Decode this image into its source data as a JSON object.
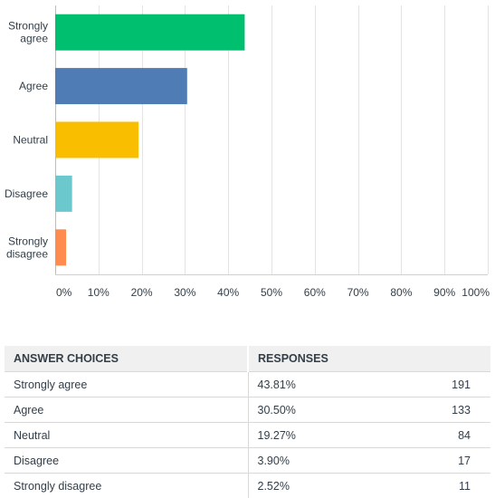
{
  "chart_data": {
    "type": "bar",
    "orientation": "horizontal",
    "categories": [
      "Strongly agree",
      "Agree",
      "Neutral",
      "Disagree",
      "Strongly disagree"
    ],
    "category_labels": [
      [
        "Strongly",
        "agree"
      ],
      [
        "Agree"
      ],
      [
        "Neutral"
      ],
      [
        "Disagree"
      ],
      [
        "Strongly",
        "disagree"
      ]
    ],
    "values": [
      43.81,
      30.5,
      19.27,
      3.9,
      2.52
    ],
    "colors": [
      "#00bf6f",
      "#507cb6",
      "#f9be00",
      "#6bc8cd",
      "#ff8b4f"
    ],
    "xlim": [
      0,
      100
    ],
    "xticks": [
      "0%",
      "10%",
      "20%",
      "30%",
      "40%",
      "50%",
      "60%",
      "70%",
      "80%",
      "90%",
      "100%"
    ],
    "grid": true,
    "title": "",
    "xlabel": "",
    "ylabel": ""
  },
  "table": {
    "headers": [
      "ANSWER CHOICES",
      "RESPONSES"
    ],
    "rows": [
      {
        "choice": "Strongly agree",
        "percent": "43.81%",
        "count": "191"
      },
      {
        "choice": "Agree",
        "percent": "30.50%",
        "count": "133"
      },
      {
        "choice": "Neutral",
        "percent": "19.27%",
        "count": "84"
      },
      {
        "choice": "Disagree",
        "percent": "3.90%",
        "count": "17"
      },
      {
        "choice": "Strongly disagree",
        "percent": "2.52%",
        "count": "11"
      }
    ]
  }
}
